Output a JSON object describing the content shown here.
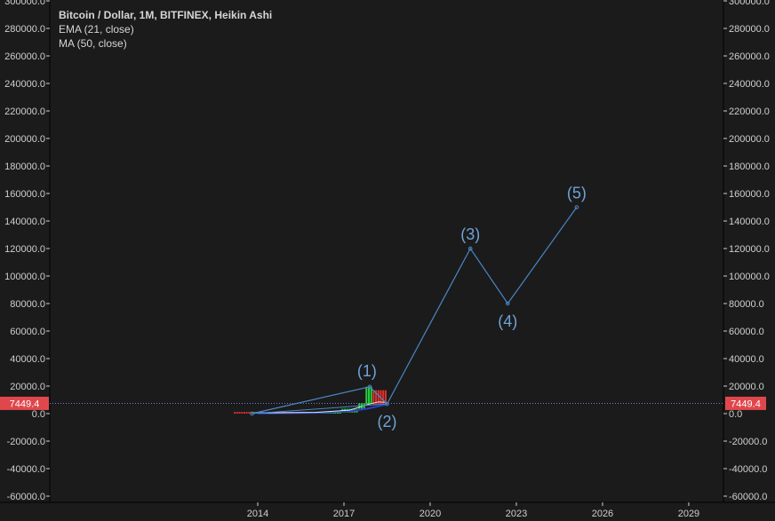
{
  "chart_data": {
    "type": "line",
    "title": "Bitcoin / Dollar, 1M, BITFINEX, Heikin Ashi",
    "indicators": [
      "EMA (21, close)",
      "MA (50, close)"
    ],
    "ylim": [
      -65000,
      305000
    ],
    "xlim": [
      2010.6,
      2030.8
    ],
    "y_ticks": [
      {
        "value": 300000,
        "label": "300000.0"
      },
      {
        "value": 280000,
        "label": "280000.0"
      },
      {
        "value": 260000,
        "label": "260000.0"
      },
      {
        "value": 240000,
        "label": "240000.0"
      },
      {
        "value": 220000,
        "label": "220000.0"
      },
      {
        "value": 200000,
        "label": "200000.0"
      },
      {
        "value": 180000,
        "label": "180000.0"
      },
      {
        "value": 160000,
        "label": "160000.0"
      },
      {
        "value": 140000,
        "label": "140000.0"
      },
      {
        "value": 120000,
        "label": "120000.0"
      },
      {
        "value": 100000,
        "label": "100000.0"
      },
      {
        "value": 80000,
        "label": "80000.0"
      },
      {
        "value": 60000,
        "label": "60000.0"
      },
      {
        "value": 40000,
        "label": "40000.0"
      },
      {
        "value": 20000,
        "label": "20000.0"
      },
      {
        "value": 0,
        "label": "0.0"
      },
      {
        "value": -20000,
        "label": "-20000.0"
      },
      {
        "value": -40000,
        "label": "-40000.0"
      },
      {
        "value": -60000,
        "label": "-60000.0"
      }
    ],
    "x_ticks": [
      {
        "value": 2014,
        "label": "2014"
      },
      {
        "value": 2017,
        "label": "2017"
      },
      {
        "value": 2020,
        "label": "2020"
      },
      {
        "value": 2023,
        "label": "2023"
      },
      {
        "value": 2026,
        "label": "2026"
      },
      {
        "value": 2029,
        "label": "2029"
      }
    ],
    "last_price": {
      "value": 7449.4,
      "label": "7449.4"
    },
    "wave_path": {
      "x": [
        2013.8,
        2017.9,
        2018.5,
        2021.4,
        2022.7,
        2025.1
      ],
      "y": [
        0,
        19500,
        7000,
        120000,
        80000,
        150000
      ]
    },
    "wave_labels": [
      {
        "label": "(1)",
        "x": 2017.8,
        "y": 19500
      },
      {
        "label": "(2)",
        "x": 2018.5,
        "y": 7000
      },
      {
        "label": "(3)",
        "x": 2021.4,
        "y": 120000
      },
      {
        "label": "(4)",
        "x": 2022.7,
        "y": 80000
      },
      {
        "label": "(5)",
        "x": 2025.1,
        "y": 150000
      }
    ],
    "colors": {
      "background": "#1b1b1b",
      "axis": "#cfcfcf",
      "grid_line": "#000000",
      "wave_line": "#4a86c5",
      "wave_label": "#6ea3d6",
      "price_line": "#6f7fd6",
      "price_tag": "#e0474c",
      "candle_up": "#22d23a",
      "candle_down": "#e0312e",
      "ema": "#e6e6e6",
      "ma": "#2a3fd0"
    }
  }
}
